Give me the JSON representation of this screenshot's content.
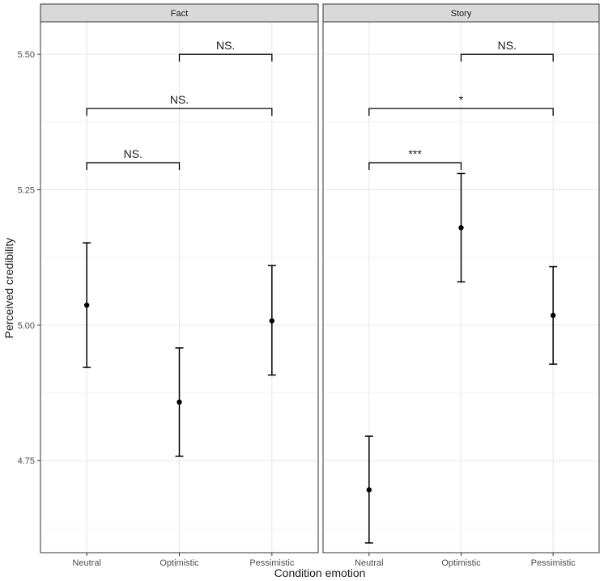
{
  "chart_data": {
    "type": "scatter",
    "xlabel": "Condition emotion",
    "ylabel": "Perceived credibility",
    "categories": [
      "Neutral",
      "Optimistic",
      "Pessimistic"
    ],
    "ylim": [
      4.58,
      5.56
    ],
    "yticks": [
      "4.75",
      "5.00",
      "5.25",
      "5.50"
    ],
    "grid": true,
    "panels": [
      {
        "name": "Fact",
        "points": [
          {
            "x": "Neutral",
            "y": 5.037,
            "lower": 4.922,
            "upper": 5.152
          },
          {
            "x": "Optimistic",
            "y": 4.858,
            "lower": 4.758,
            "upper": 4.958
          },
          {
            "x": "Pessimistic",
            "y": 5.008,
            "lower": 4.908,
            "upper": 5.11
          }
        ],
        "comparisons": [
          {
            "from": "Optimistic",
            "to": "Pessimistic",
            "y": 5.5,
            "label": "NS."
          },
          {
            "from": "Neutral",
            "to": "Pessimistic",
            "y": 5.4,
            "label": "NS."
          },
          {
            "from": "Neutral",
            "to": "Optimistic",
            "y": 5.3,
            "label": "NS."
          }
        ]
      },
      {
        "name": "Story",
        "points": [
          {
            "x": "Neutral",
            "y": 4.696,
            "lower": 4.598,
            "upper": 4.795
          },
          {
            "x": "Optimistic",
            "y": 5.18,
            "lower": 5.08,
            "upper": 5.28
          },
          {
            "x": "Pessimistic",
            "y": 5.018,
            "lower": 4.928,
            "upper": 5.108
          }
        ],
        "comparisons": [
          {
            "from": "Optimistic",
            "to": "Pessimistic",
            "y": 5.5,
            "label": "NS."
          },
          {
            "from": "Neutral",
            "to": "Pessimistic",
            "y": 5.4,
            "label": "*"
          },
          {
            "from": "Neutral",
            "to": "Optimistic",
            "y": 5.3,
            "label": "***"
          }
        ]
      }
    ]
  }
}
